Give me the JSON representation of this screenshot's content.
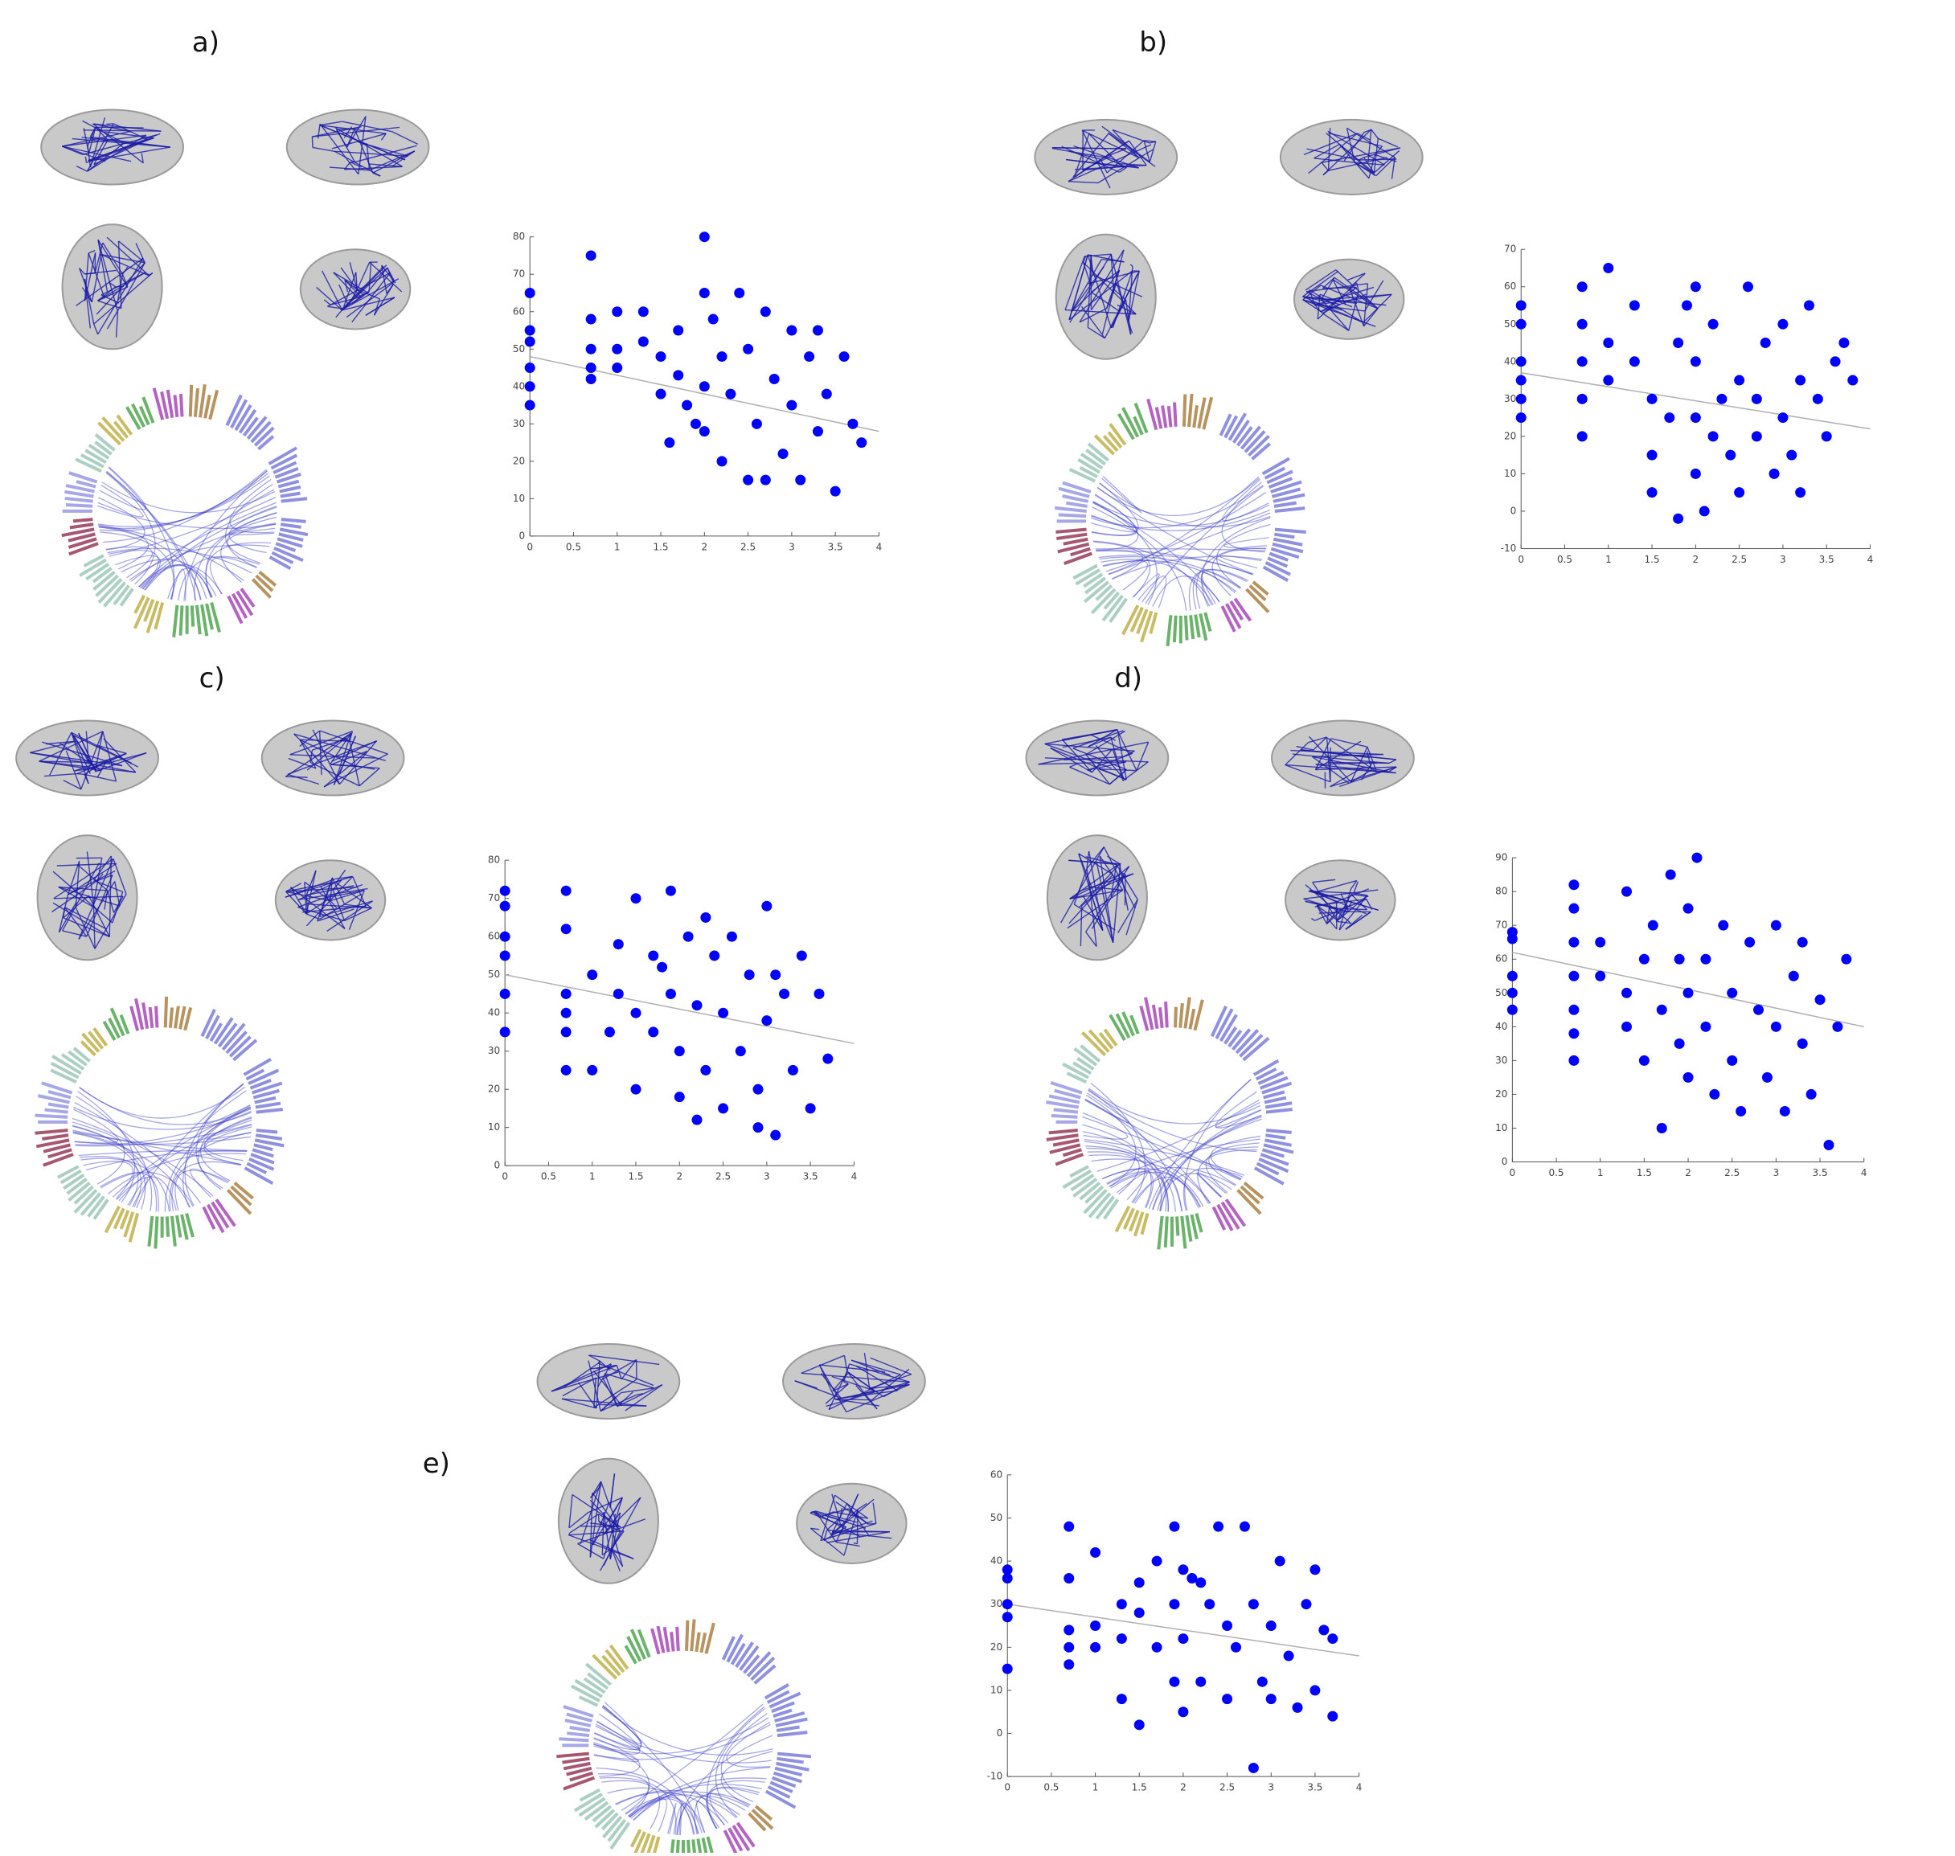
{
  "chart_data": [
    {
      "type": "scatter",
      "label": "a)",
      "color": "#0000ff",
      "x": [
        0,
        0,
        0,
        0,
        0,
        0,
        0.7,
        0.7,
        0.7,
        0.7,
        0.7,
        1,
        1,
        1,
        1.3,
        1.3,
        1.5,
        1.5,
        1.7,
        1.7,
        1.8,
        2,
        2,
        2,
        2,
        2.2,
        2.2,
        2.3,
        2.4,
        2.5,
        2.5,
        2.6,
        2.7,
        2.8,
        2.9,
        3,
        3,
        3.1,
        3.2,
        3.3,
        3.4,
        3.5,
        3.6,
        3.7,
        3.8,
        1.9,
        2.1,
        2.7,
        3.3,
        1.6
      ],
      "values": [
        65,
        55,
        52,
        45,
        40,
        35,
        75,
        58,
        50,
        45,
        42,
        60,
        50,
        45,
        60,
        52,
        48,
        38,
        55,
        43,
        35,
        80,
        65,
        40,
        28,
        48,
        20,
        38,
        65,
        50,
        15,
        30,
        60,
        42,
        22,
        55,
        35,
        15,
        48,
        28,
        38,
        12,
        48,
        30,
        25,
        30,
        58,
        15,
        55,
        25
      ],
      "fit": {
        "x": [
          0,
          4
        ],
        "y": [
          48,
          28
        ]
      },
      "xlim": [
        0,
        4
      ],
      "xticks": [
        0,
        0.5,
        1,
        1.5,
        2,
        2.5,
        3,
        3.5,
        4
      ],
      "ylim": [
        0,
        80
      ],
      "yticks": [
        0,
        10,
        20,
        30,
        40,
        50,
        60,
        70,
        80
      ]
    },
    {
      "type": "scatter",
      "label": "b)",
      "color": "#0000ff",
      "x": [
        0,
        0,
        0,
        0,
        0,
        0,
        0.7,
        0.7,
        0.7,
        0.7,
        0.7,
        1,
        1,
        1,
        1.3,
        1.3,
        1.5,
        1.5,
        1.5,
        1.7,
        1.8,
        1.8,
        2,
        2,
        2,
        2,
        2.2,
        2.2,
        2.3,
        2.4,
        2.5,
        2.5,
        2.6,
        2.7,
        2.8,
        2.9,
        3,
        3,
        3.1,
        3.2,
        3.3,
        3.4,
        3.5,
        3.6,
        3.7,
        3.8,
        2.1,
        1.9,
        2.7,
        3.2
      ],
      "values": [
        55,
        50,
        40,
        35,
        30,
        25,
        60,
        50,
        40,
        30,
        20,
        65,
        45,
        35,
        55,
        40,
        30,
        15,
        5,
        25,
        45,
        -2,
        60,
        40,
        25,
        10,
        50,
        20,
        30,
        15,
        35,
        5,
        60,
        20,
        45,
        10,
        50,
        25,
        15,
        5,
        55,
        30,
        20,
        40,
        45,
        35,
        0,
        55,
        30,
        35
      ],
      "fit": {
        "x": [
          0,
          4
        ],
        "y": [
          37,
          22
        ]
      },
      "xlim": [
        0,
        4
      ],
      "xticks": [
        0,
        0.5,
        1,
        1.5,
        2,
        2.5,
        3,
        3.5,
        4
      ],
      "ylim": [
        -10,
        70
      ],
      "yticks": [
        -10,
        0,
        10,
        20,
        30,
        40,
        50,
        60,
        70
      ]
    },
    {
      "type": "scatter",
      "label": "c)",
      "color": "#0000ff",
      "x": [
        0,
        0,
        0,
        0,
        0,
        0,
        0.7,
        0.7,
        0.7,
        0.7,
        0.7,
        0.7,
        1,
        1,
        1.3,
        1.3,
        1.5,
        1.5,
        1.5,
        1.7,
        1.7,
        1.9,
        1.9,
        2,
        2,
        2.1,
        2.2,
        2.2,
        2.3,
        2.4,
        2.5,
        2.5,
        2.6,
        2.7,
        2.8,
        2.9,
        3,
        3,
        3.1,
        3.2,
        3.3,
        3.4,
        3.5,
        3.6,
        3.7,
        2.9,
        1.8,
        2.3,
        3.1,
        1.2
      ],
      "values": [
        72,
        68,
        60,
        55,
        45,
        35,
        72,
        62,
        45,
        40,
        35,
        25,
        50,
        25,
        58,
        45,
        70,
        40,
        20,
        55,
        35,
        72,
        45,
        30,
        18,
        60,
        42,
        12,
        25,
        55,
        40,
        15,
        60,
        30,
        50,
        20,
        68,
        38,
        8,
        45,
        25,
        55,
        15,
        45,
        28,
        10,
        52,
        65,
        50,
        35
      ],
      "fit": {
        "x": [
          0,
          4
        ],
        "y": [
          50,
          32
        ]
      },
      "xlim": [
        0,
        4
      ],
      "xticks": [
        0,
        0.5,
        1,
        1.5,
        2,
        2.5,
        3,
        3.5,
        4
      ],
      "ylim": [
        0,
        80
      ],
      "yticks": [
        0,
        10,
        20,
        30,
        40,
        50,
        60,
        70,
        80
      ]
    },
    {
      "type": "scatter",
      "label": "d)",
      "color": "#0000ff",
      "x": [
        0,
        0,
        0,
        0,
        0,
        0.7,
        0.7,
        0.7,
        0.7,
        0.7,
        0.7,
        0.7,
        1,
        1,
        1.3,
        1.3,
        1.3,
        1.5,
        1.5,
        1.6,
        1.7,
        1.7,
        1.8,
        1.9,
        1.9,
        2,
        2,
        2,
        2.1,
        2.2,
        2.2,
        2.3,
        2.4,
        2.5,
        2.5,
        2.6,
        2.7,
        2.8,
        2.9,
        3,
        3,
        3.1,
        3.2,
        3.3,
        3.4,
        3.5,
        3.6,
        3.7,
        3.8,
        3.3
      ],
      "values": [
        68,
        66,
        55,
        50,
        45,
        82,
        75,
        65,
        55,
        45,
        38,
        30,
        65,
        55,
        80,
        50,
        40,
        60,
        30,
        70,
        45,
        10,
        85,
        60,
        35,
        75,
        50,
        25,
        90,
        60,
        40,
        20,
        70,
        50,
        30,
        15,
        65,
        45,
        25,
        70,
        40,
        15,
        55,
        35,
        20,
        48,
        5,
        40,
        60,
        65
      ],
      "fit": {
        "x": [
          0,
          4
        ],
        "y": [
          62,
          40
        ]
      },
      "xlim": [
        0,
        4
      ],
      "xticks": [
        0,
        0.5,
        1,
        1.5,
        2,
        2.5,
        3,
        3.5,
        4
      ],
      "ylim": [
        0,
        90
      ],
      "yticks": [
        0,
        10,
        20,
        30,
        40,
        50,
        60,
        70,
        80,
        90
      ]
    },
    {
      "type": "scatter",
      "label": "e)",
      "color": "#0000ff",
      "x": [
        0,
        0,
        0,
        0,
        0,
        0.7,
        0.7,
        0.7,
        0.7,
        0.7,
        1,
        1,
        1,
        1.3,
        1.3,
        1.3,
        1.5,
        1.5,
        1.5,
        1.7,
        1.7,
        1.9,
        1.9,
        1.9,
        2,
        2,
        2,
        2.1,
        2.2,
        2.3,
        2.4,
        2.5,
        2.5,
        2.6,
        2.7,
        2.8,
        2.8,
        2.9,
        3,
        3,
        3.1,
        3.2,
        3.3,
        3.4,
        3.5,
        3.5,
        3.6,
        3.7,
        3.7,
        2.2
      ],
      "values": [
        38,
        36,
        30,
        27,
        15,
        48,
        36,
        24,
        20,
        16,
        42,
        25,
        20,
        30,
        22,
        8,
        35,
        28,
        2,
        40,
        20,
        48,
        30,
        12,
        38,
        22,
        5,
        36,
        12,
        30,
        48,
        25,
        8,
        20,
        48,
        30,
        -8,
        12,
        25,
        8,
        40,
        18,
        6,
        30,
        38,
        10,
        24,
        22,
        4,
        35
      ],
      "fit": {
        "x": [
          0,
          4
        ],
        "y": [
          30,
          18
        ]
      },
      "xlim": [
        0,
        4
      ],
      "xticks": [
        0,
        0.5,
        1,
        1.5,
        2,
        2.5,
        3,
        3.5,
        4
      ],
      "ylim": [
        -10,
        60
      ],
      "yticks": [
        -10,
        0,
        10,
        20,
        30,
        40,
        50,
        60
      ]
    }
  ]
}
